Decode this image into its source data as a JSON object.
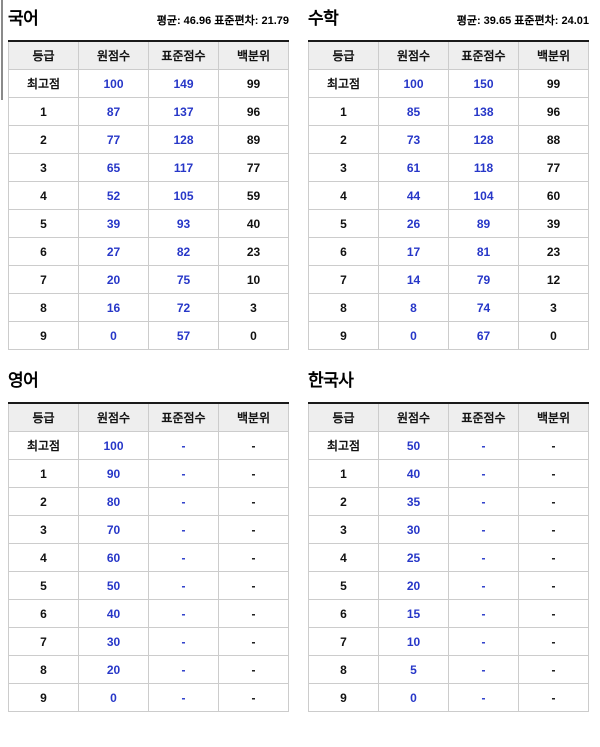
{
  "page": {
    "background": "#ffffff",
    "header_bg": "#eeeeee",
    "border_color": "#cccccc",
    "top_border_color": "#1a1a1a",
    "blue_value_color": "#2737c8",
    "black_value_color": "#111111"
  },
  "chart_data": [
    {
      "type": "table",
      "title": "국어",
      "stats": "평균: 46.96 표준편차: 21.79",
      "columns": [
        "등급",
        "원점수",
        "표준점수",
        "백분위"
      ],
      "rows": [
        [
          "최고점",
          "100",
          "149",
          "99"
        ],
        [
          "1",
          "87",
          "137",
          "96"
        ],
        [
          "2",
          "77",
          "128",
          "89"
        ],
        [
          "3",
          "65",
          "117",
          "77"
        ],
        [
          "4",
          "52",
          "105",
          "59"
        ],
        [
          "5",
          "39",
          "93",
          "40"
        ],
        [
          "6",
          "27",
          "82",
          "23"
        ],
        [
          "7",
          "20",
          "75",
          "10"
        ],
        [
          "8",
          "16",
          "72",
          "3"
        ],
        [
          "9",
          "0",
          "57",
          "0"
        ]
      ]
    },
    {
      "type": "table",
      "title": "수학",
      "stats": "평균: 39.65 표준편차: 24.01",
      "columns": [
        "등급",
        "원점수",
        "표준점수",
        "백분위"
      ],
      "rows": [
        [
          "최고점",
          "100",
          "150",
          "99"
        ],
        [
          "1",
          "85",
          "138",
          "96"
        ],
        [
          "2",
          "73",
          "128",
          "88"
        ],
        [
          "3",
          "61",
          "118",
          "77"
        ],
        [
          "4",
          "44",
          "104",
          "60"
        ],
        [
          "5",
          "26",
          "89",
          "39"
        ],
        [
          "6",
          "17",
          "81",
          "23"
        ],
        [
          "7",
          "14",
          "79",
          "12"
        ],
        [
          "8",
          "8",
          "74",
          "3"
        ],
        [
          "9",
          "0",
          "67",
          "0"
        ]
      ]
    },
    {
      "type": "table",
      "title": "영어",
      "columns": [
        "등급",
        "원점수",
        "표준점수",
        "백분위"
      ],
      "rows": [
        [
          "최고점",
          "100",
          "-",
          "-"
        ],
        [
          "1",
          "90",
          "-",
          "-"
        ],
        [
          "2",
          "80",
          "-",
          "-"
        ],
        [
          "3",
          "70",
          "-",
          "-"
        ],
        [
          "4",
          "60",
          "-",
          "-"
        ],
        [
          "5",
          "50",
          "-",
          "-"
        ],
        [
          "6",
          "40",
          "-",
          "-"
        ],
        [
          "7",
          "30",
          "-",
          "-"
        ],
        [
          "8",
          "20",
          "-",
          "-"
        ],
        [
          "9",
          "0",
          "-",
          "-"
        ]
      ]
    },
    {
      "type": "table",
      "title": "한국사",
      "columns": [
        "등급",
        "원점수",
        "표준점수",
        "백분위"
      ],
      "rows": [
        [
          "최고점",
          "50",
          "-",
          "-"
        ],
        [
          "1",
          "40",
          "-",
          "-"
        ],
        [
          "2",
          "35",
          "-",
          "-"
        ],
        [
          "3",
          "30",
          "-",
          "-"
        ],
        [
          "4",
          "25",
          "-",
          "-"
        ],
        [
          "5",
          "20",
          "-",
          "-"
        ],
        [
          "6",
          "15",
          "-",
          "-"
        ],
        [
          "7",
          "10",
          "-",
          "-"
        ],
        [
          "8",
          "5",
          "-",
          "-"
        ],
        [
          "9",
          "0",
          "-",
          "-"
        ]
      ]
    }
  ]
}
